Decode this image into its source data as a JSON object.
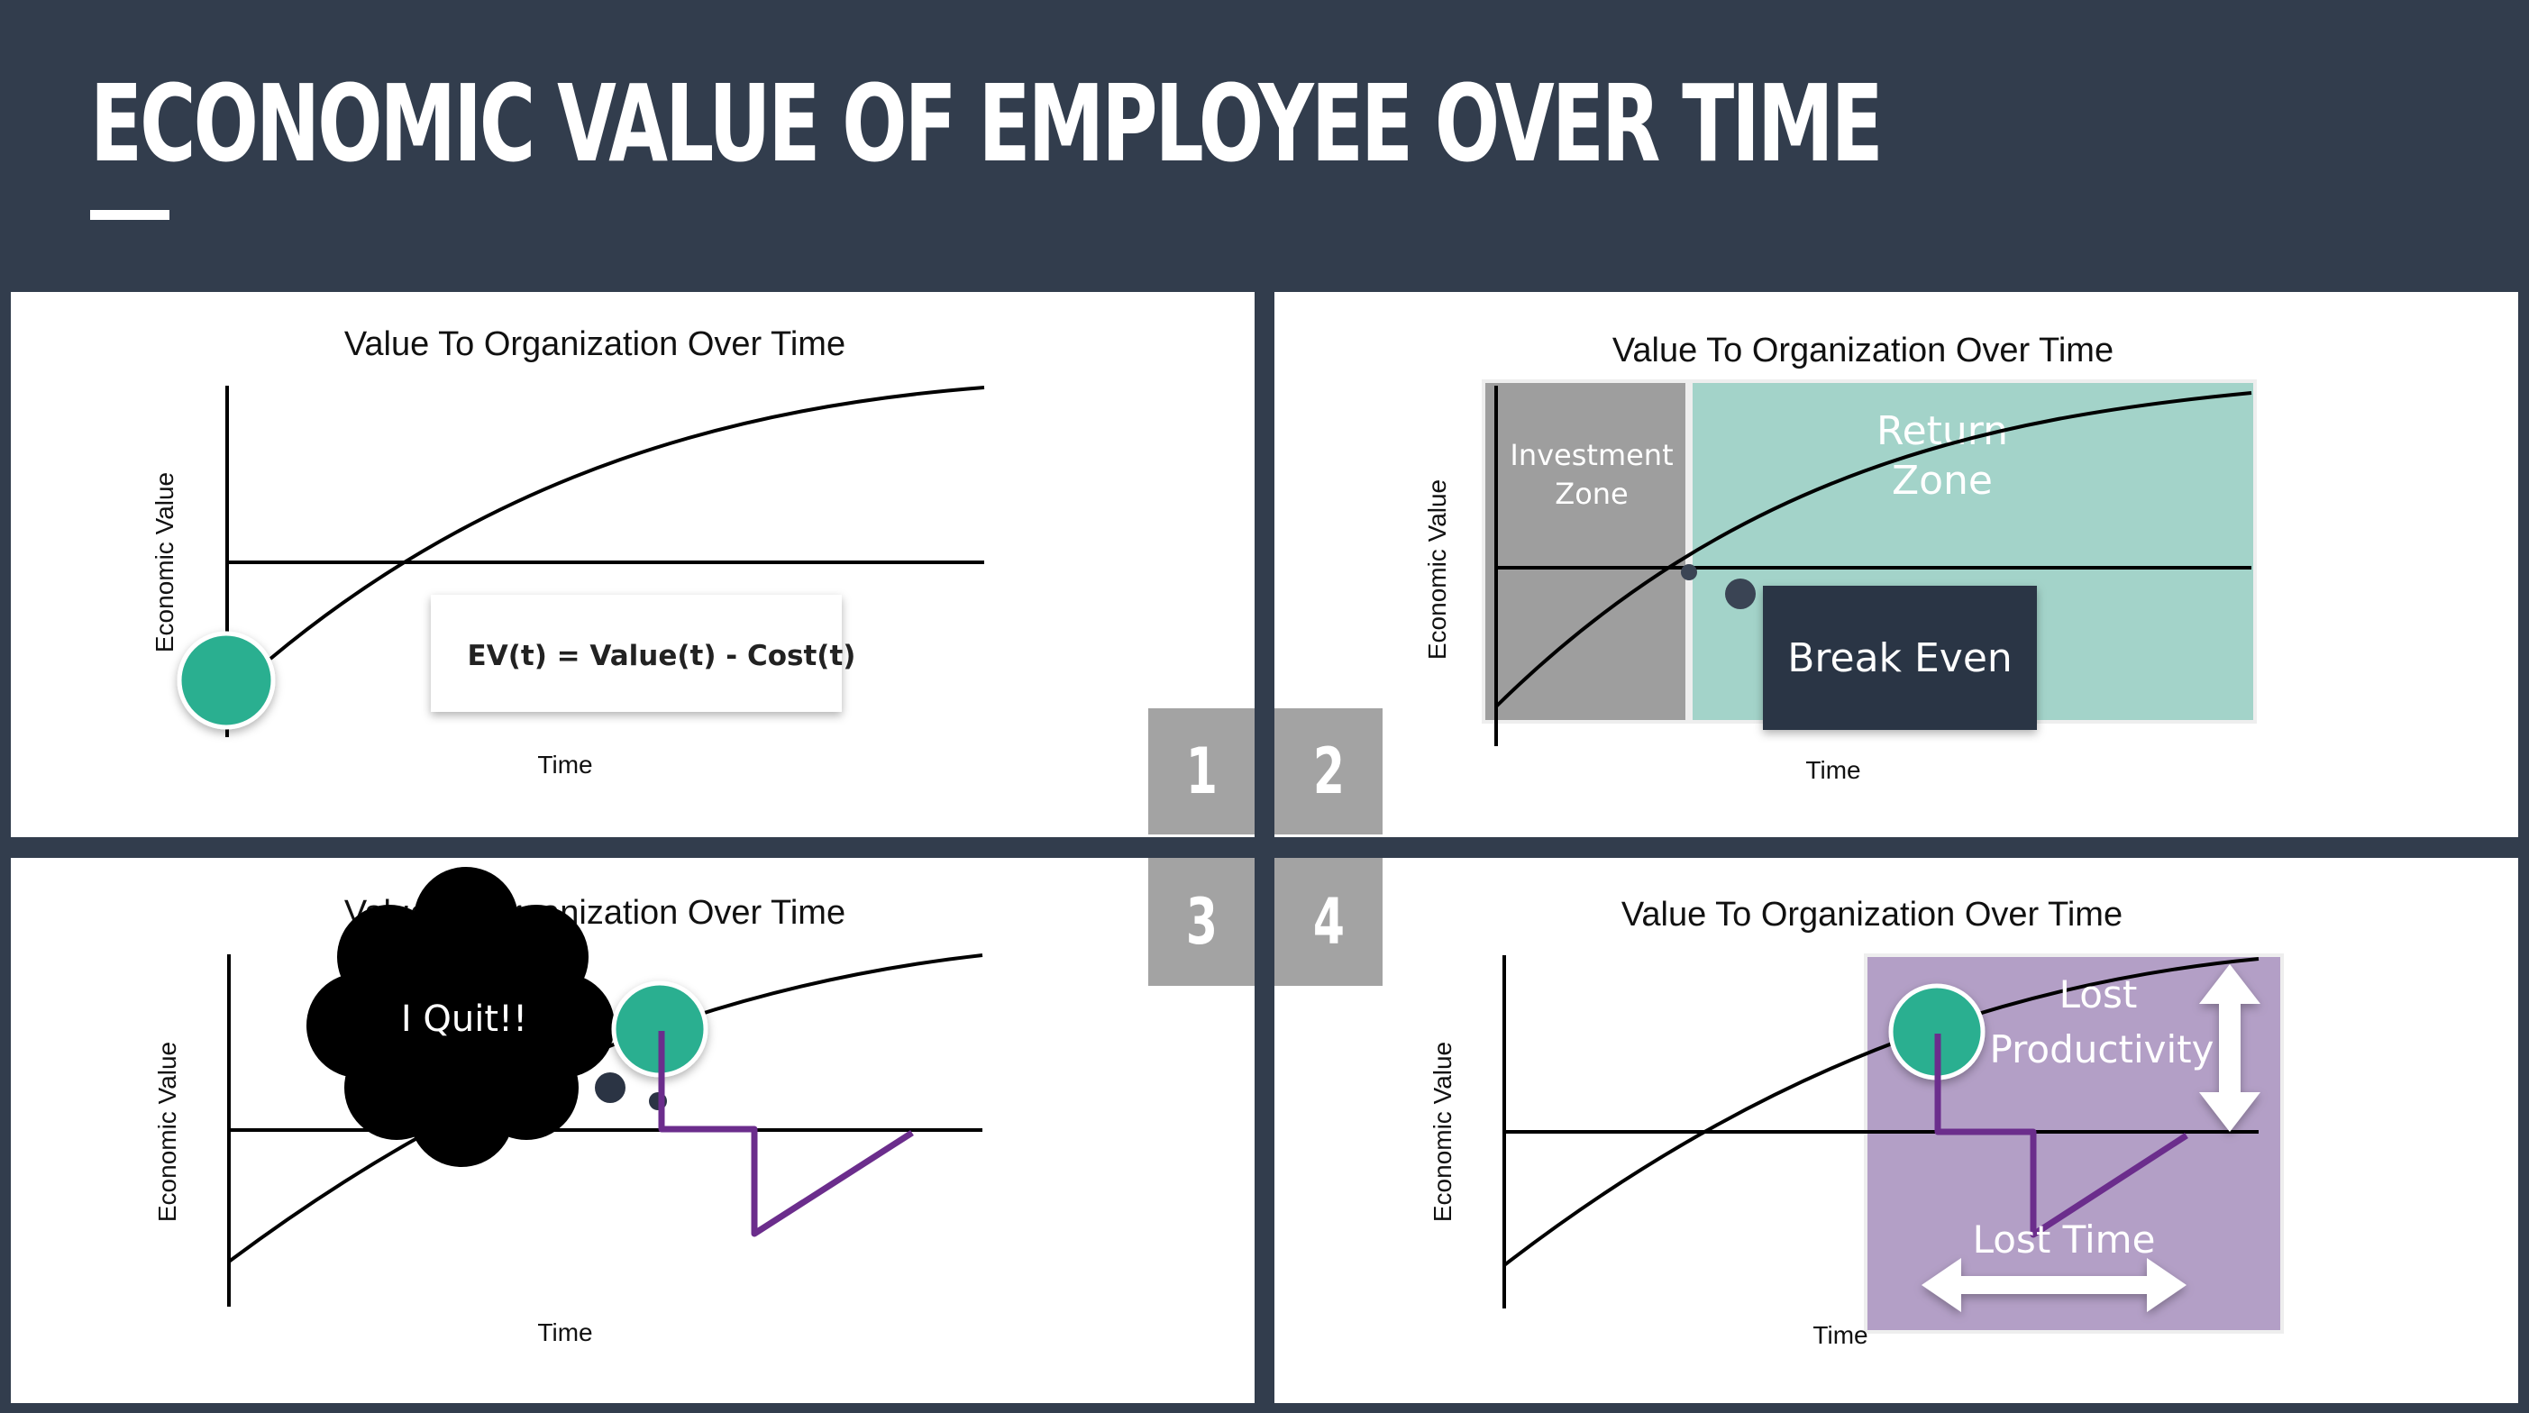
{
  "page": {
    "title": "ECONOMIC VALUE OF EMPLOYEE OVER TIME"
  },
  "colors": {
    "background": "#323d4d",
    "teal": "#2aaf90",
    "purple": "#6b2d8c",
    "return_zone": "#a3d3c9",
    "investment_zone": "#9e9e9e",
    "lost_zone": "#b39fc6",
    "break_even_box": "#2b3444"
  },
  "panels": [
    {
      "number": "1",
      "title": "Value To Organization Over Time",
      "ylabel": "Economic Value",
      "xlabel": "Time",
      "formula": "EV(t) = Value(t) - Cost(t)"
    },
    {
      "number": "2",
      "title": "Value To Organization Over Time",
      "ylabel": "Economic Value",
      "xlabel": "Time",
      "investment_label": [
        "Investment",
        "Zone"
      ],
      "return_label": [
        "Return",
        "Zone"
      ],
      "break_even_label": "Break Even"
    },
    {
      "number": "3",
      "title": "Value To Organization Over Time",
      "ylabel": "Economic Value",
      "xlabel": "Time",
      "thought_bubble": "I Quit!!"
    },
    {
      "number": "4",
      "title": "Value To Organization Over Time",
      "ylabel": "Economic Value",
      "xlabel": "Time",
      "lost_productivity_label": [
        "Lost",
        "Productivity"
      ],
      "lost_time_label": "Lost Time"
    }
  ]
}
